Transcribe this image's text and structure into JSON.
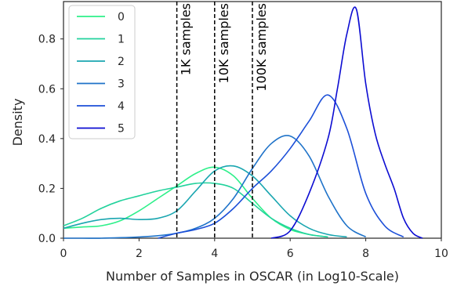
{
  "chart_data": {
    "type": "line",
    "xlabel": "Number of Samples in OSCAR (in Log10-Scale)",
    "ylabel": "Density",
    "xlim": [
      0,
      10
    ],
    "ylim": [
      0,
      0.95
    ],
    "xticks": [
      "0",
      "2",
      "4",
      "6",
      "8",
      "10"
    ],
    "yticks": [
      "0.0",
      "0.2",
      "0.4",
      "0.6",
      "0.8"
    ],
    "xtick_values": [
      0,
      2,
      4,
      6,
      8,
      10
    ],
    "ytick_values": [
      0,
      0.2,
      0.4,
      0.6,
      0.8
    ],
    "grid": false,
    "legend_placement": "top-left",
    "vertical_lines": [
      {
        "x": 3,
        "label": "1K samples",
        "style": "dashed"
      },
      {
        "x": 4,
        "label": "10K samples",
        "style": "dashed"
      },
      {
        "x": 5,
        "label": "100K samples",
        "style": "dashed"
      }
    ],
    "series": [
      {
        "name": "0",
        "color": "#2ef08a",
        "x": [
          0,
          0.5,
          1,
          1.5,
          2,
          2.5,
          3,
          3.5,
          4,
          4.5,
          5,
          5.5,
          6,
          6.5,
          7
        ],
        "y": [
          0.04,
          0.045,
          0.05,
          0.07,
          0.11,
          0.16,
          0.21,
          0.26,
          0.285,
          0.25,
          0.16,
          0.08,
          0.035,
          0.015,
          0.005
        ]
      },
      {
        "name": "1",
        "color": "#22d29c",
        "x": [
          0,
          0.5,
          1,
          1.5,
          2,
          2.5,
          3,
          3.5,
          4,
          4.5,
          5,
          5.5,
          6,
          6.5,
          7
        ],
        "y": [
          0.05,
          0.08,
          0.12,
          0.15,
          0.17,
          0.19,
          0.205,
          0.22,
          0.22,
          0.2,
          0.14,
          0.08,
          0.04,
          0.015,
          0.005
        ]
      },
      {
        "name": "2",
        "color": "#1aa6b0",
        "x": [
          0,
          0.5,
          1,
          1.5,
          2,
          2.5,
          3,
          3.5,
          4,
          4.5,
          5,
          5.5,
          6,
          6.5,
          7,
          7.5
        ],
        "y": [
          0.04,
          0.06,
          0.075,
          0.08,
          0.075,
          0.08,
          0.11,
          0.19,
          0.27,
          0.29,
          0.25,
          0.17,
          0.09,
          0.04,
          0.015,
          0.005
        ]
      },
      {
        "name": "3",
        "color": "#1f73c9",
        "x": [
          0,
          0.5,
          1,
          1.5,
          2,
          2.5,
          3,
          3.5,
          4,
          4.5,
          5,
          5.5,
          6,
          6.5,
          7,
          7.5,
          8
        ],
        "y": [
          0.0,
          0.0,
          0.0,
          0.002,
          0.005,
          0.01,
          0.02,
          0.04,
          0.08,
          0.16,
          0.28,
          0.38,
          0.41,
          0.33,
          0.17,
          0.05,
          0.005
        ]
      },
      {
        "name": "4",
        "color": "#1c4fd8",
        "x": [
          2.5,
          3,
          3.5,
          4,
          4.5,
          5,
          5.5,
          6,
          6.5,
          7,
          7.5,
          8,
          8.5,
          9
        ],
        "y": [
          0.0,
          0.02,
          0.035,
          0.06,
          0.12,
          0.2,
          0.27,
          0.36,
          0.47,
          0.575,
          0.44,
          0.18,
          0.05,
          0.005
        ]
      },
      {
        "name": "5",
        "color": "#0c0cd2",
        "x": [
          5.5,
          6,
          6.5,
          7,
          7.25,
          7.5,
          7.75,
          8,
          8.25,
          8.5,
          8.75,
          9,
          9.25,
          9.5
        ],
        "y": [
          0.0,
          0.03,
          0.18,
          0.4,
          0.6,
          0.82,
          0.92,
          0.62,
          0.42,
          0.3,
          0.2,
          0.08,
          0.02,
          0.0
        ]
      }
    ]
  }
}
